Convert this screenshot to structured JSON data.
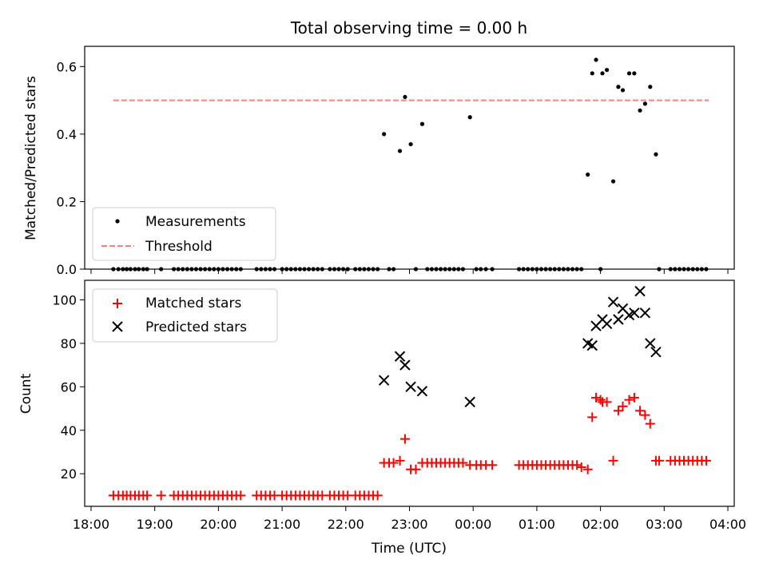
{
  "figure": {
    "title": "Total observing time = 0.00 h"
  },
  "chart_data": [
    {
      "type": "scatter",
      "panel": "top",
      "title": "Total observing time = 0.00 h",
      "ylabel": "Matched/Predicted stars",
      "xlabel": "",
      "xlim": [
        17.9,
        28.1
      ],
      "ylim": [
        0,
        0.66
      ],
      "yticks": [
        0,
        0.2,
        0.4,
        0.6
      ],
      "ytick_labels": [
        "0.0",
        "0.2",
        "0.4",
        "0.6"
      ],
      "legend": {
        "placement": "lower-left",
        "entries": [
          "Measurements",
          "Threshold"
        ]
      },
      "grid": false,
      "threshold": {
        "name": "Threshold",
        "value": 0.5,
        "x": [
          18.35,
          27.7
        ],
        "color": "#ff7f7f",
        "style": "dashed"
      },
      "series": [
        {
          "name": "Measurements",
          "color": "#000000",
          "marker": "dot",
          "points": [
            [
              18.35,
              0
            ],
            [
              18.43,
              0
            ],
            [
              18.5,
              0
            ],
            [
              18.56,
              0
            ],
            [
              18.62,
              0
            ],
            [
              18.69,
              0
            ],
            [
              18.75,
              0
            ],
            [
              18.82,
              0
            ],
            [
              18.88,
              0
            ],
            [
              19.1,
              0
            ],
            [
              19.3,
              0
            ],
            [
              19.37,
              0
            ],
            [
              19.44,
              0
            ],
            [
              19.51,
              0
            ],
            [
              19.58,
              0
            ],
            [
              19.65,
              0
            ],
            [
              19.72,
              0
            ],
            [
              19.79,
              0
            ],
            [
              19.86,
              0
            ],
            [
              19.93,
              0
            ],
            [
              20.0,
              0
            ],
            [
              20.07,
              0
            ],
            [
              20.14,
              0
            ],
            [
              20.21,
              0
            ],
            [
              20.28,
              0
            ],
            [
              20.35,
              0
            ],
            [
              20.6,
              0
            ],
            [
              20.67,
              0
            ],
            [
              20.74,
              0
            ],
            [
              20.81,
              0
            ],
            [
              20.88,
              0
            ],
            [
              21.0,
              0
            ],
            [
              21.07,
              0
            ],
            [
              21.14,
              0
            ],
            [
              21.21,
              0
            ],
            [
              21.28,
              0
            ],
            [
              21.35,
              0
            ],
            [
              21.42,
              0
            ],
            [
              21.49,
              0
            ],
            [
              21.56,
              0
            ],
            [
              21.63,
              0
            ],
            [
              21.75,
              0
            ],
            [
              21.82,
              0
            ],
            [
              21.89,
              0
            ],
            [
              21.96,
              0
            ],
            [
              22.03,
              0
            ],
            [
              22.15,
              0
            ],
            [
              22.22,
              0
            ],
            [
              22.29,
              0
            ],
            [
              22.36,
              0
            ],
            [
              22.43,
              0
            ],
            [
              22.5,
              0
            ],
            [
              22.6,
              0.4
            ],
            [
              22.68,
              0
            ],
            [
              22.75,
              0
            ],
            [
              22.85,
              0.35
            ],
            [
              22.93,
              0.51
            ],
            [
              23.02,
              0.37
            ],
            [
              23.1,
              0
            ],
            [
              23.2,
              0.43
            ],
            [
              23.28,
              0
            ],
            [
              23.35,
              0
            ],
            [
              23.42,
              0
            ],
            [
              23.49,
              0
            ],
            [
              23.56,
              0
            ],
            [
              23.63,
              0
            ],
            [
              23.7,
              0
            ],
            [
              23.77,
              0
            ],
            [
              23.84,
              0
            ],
            [
              23.95,
              0.45
            ],
            [
              24.05,
              0
            ],
            [
              24.12,
              0
            ],
            [
              24.2,
              0
            ],
            [
              24.3,
              0
            ],
            [
              24.72,
              0
            ],
            [
              24.79,
              0
            ],
            [
              24.86,
              0
            ],
            [
              24.93,
              0
            ],
            [
              25.0,
              0
            ],
            [
              25.07,
              0
            ],
            [
              25.14,
              0
            ],
            [
              25.21,
              0
            ],
            [
              25.28,
              0
            ],
            [
              25.35,
              0
            ],
            [
              25.42,
              0
            ],
            [
              25.49,
              0
            ],
            [
              25.56,
              0
            ],
            [
              25.63,
              0
            ],
            [
              25.7,
              0
            ],
            [
              25.8,
              0.28
            ],
            [
              25.87,
              0.58
            ],
            [
              25.93,
              0.62
            ],
            [
              26.0,
              0
            ],
            [
              26.03,
              0.58
            ],
            [
              26.1,
              0.59
            ],
            [
              26.2,
              0.26
            ],
            [
              26.28,
              0.54
            ],
            [
              26.35,
              0.53
            ],
            [
              26.45,
              0.58
            ],
            [
              26.53,
              0.58
            ],
            [
              26.62,
              0.47
            ],
            [
              26.7,
              0.49
            ],
            [
              26.78,
              0.54
            ],
            [
              26.87,
              0.34
            ],
            [
              26.92,
              0
            ],
            [
              27.1,
              0
            ],
            [
              27.17,
              0
            ],
            [
              27.24,
              0
            ],
            [
              27.31,
              0
            ],
            [
              27.38,
              0
            ],
            [
              27.45,
              0
            ],
            [
              27.52,
              0
            ],
            [
              27.59,
              0
            ],
            [
              27.66,
              0
            ]
          ]
        }
      ]
    },
    {
      "type": "scatter",
      "panel": "bottom",
      "ylabel": "Count",
      "xlabel": "Time (UTC)",
      "xlim": [
        17.9,
        28.1
      ],
      "ylim": [
        5,
        109
      ],
      "yticks": [
        20,
        40,
        60,
        80,
        100
      ],
      "ytick_labels": [
        "20",
        "40",
        "60",
        "80",
        "100"
      ],
      "xticks": [
        18,
        19,
        20,
        21,
        22,
        23,
        24,
        25,
        26,
        27,
        28
      ],
      "xtick_labels": [
        "18:00",
        "19:00",
        "20:00",
        "21:00",
        "22:00",
        "23:00",
        "00:00",
        "01:00",
        "02:00",
        "03:00",
        "04:00"
      ],
      "legend": {
        "placement": "top-left",
        "entries": [
          "Matched stars",
          "Predicted stars"
        ]
      },
      "grid": false,
      "series": [
        {
          "name": "Matched stars",
          "color": "#ff0000",
          "marker": "plus",
          "points": [
            [
              18.35,
              10
            ],
            [
              18.43,
              10
            ],
            [
              18.5,
              10
            ],
            [
              18.56,
              10
            ],
            [
              18.62,
              10
            ],
            [
              18.69,
              10
            ],
            [
              18.75,
              10
            ],
            [
              18.82,
              10
            ],
            [
              18.88,
              10
            ],
            [
              19.1,
              10
            ],
            [
              19.3,
              10
            ],
            [
              19.37,
              10
            ],
            [
              19.44,
              10
            ],
            [
              19.51,
              10
            ],
            [
              19.58,
              10
            ],
            [
              19.65,
              10
            ],
            [
              19.72,
              10
            ],
            [
              19.79,
              10
            ],
            [
              19.86,
              10
            ],
            [
              19.93,
              10
            ],
            [
              20.0,
              10
            ],
            [
              20.07,
              10
            ],
            [
              20.14,
              10
            ],
            [
              20.21,
              10
            ],
            [
              20.28,
              10
            ],
            [
              20.35,
              10
            ],
            [
              20.6,
              10
            ],
            [
              20.67,
              10
            ],
            [
              20.74,
              10
            ],
            [
              20.81,
              10
            ],
            [
              20.88,
              10
            ],
            [
              21.0,
              10
            ],
            [
              21.07,
              10
            ],
            [
              21.14,
              10
            ],
            [
              21.21,
              10
            ],
            [
              21.28,
              10
            ],
            [
              21.35,
              10
            ],
            [
              21.42,
              10
            ],
            [
              21.49,
              10
            ],
            [
              21.56,
              10
            ],
            [
              21.63,
              10
            ],
            [
              21.75,
              10
            ],
            [
              21.82,
              10
            ],
            [
              21.89,
              10
            ],
            [
              21.96,
              10
            ],
            [
              22.03,
              10
            ],
            [
              22.15,
              10
            ],
            [
              22.22,
              10
            ],
            [
              22.29,
              10
            ],
            [
              22.36,
              10
            ],
            [
              22.43,
              10
            ],
            [
              22.5,
              10
            ],
            [
              22.6,
              25
            ],
            [
              22.68,
              25
            ],
            [
              22.75,
              25
            ],
            [
              22.85,
              26
            ],
            [
              22.93,
              36
            ],
            [
              23.02,
              22
            ],
            [
              23.1,
              22
            ],
            [
              23.2,
              25
            ],
            [
              23.28,
              25
            ],
            [
              23.35,
              25
            ],
            [
              23.42,
              25
            ],
            [
              23.49,
              25
            ],
            [
              23.56,
              25
            ],
            [
              23.63,
              25
            ],
            [
              23.7,
              25
            ],
            [
              23.77,
              25
            ],
            [
              23.84,
              25
            ],
            [
              23.95,
              24
            ],
            [
              24.05,
              24
            ],
            [
              24.12,
              24
            ],
            [
              24.2,
              24
            ],
            [
              24.3,
              24
            ],
            [
              24.72,
              24
            ],
            [
              24.79,
              24
            ],
            [
              24.86,
              24
            ],
            [
              24.93,
              24
            ],
            [
              25.0,
              24
            ],
            [
              25.07,
              24
            ],
            [
              25.14,
              24
            ],
            [
              25.21,
              24
            ],
            [
              25.28,
              24
            ],
            [
              25.35,
              24
            ],
            [
              25.42,
              24
            ],
            [
              25.49,
              24
            ],
            [
              25.56,
              24
            ],
            [
              25.63,
              24
            ],
            [
              25.7,
              23
            ],
            [
              25.8,
              22
            ],
            [
              25.87,
              46
            ],
            [
              25.93,
              55
            ],
            [
              26.0,
              54
            ],
            [
              26.03,
              53
            ],
            [
              26.1,
              53
            ],
            [
              26.2,
              26
            ],
            [
              26.28,
              49
            ],
            [
              26.35,
              51
            ],
            [
              26.45,
              54
            ],
            [
              26.53,
              55
            ],
            [
              26.62,
              49
            ],
            [
              26.7,
              47
            ],
            [
              26.78,
              43
            ],
            [
              26.87,
              26
            ],
            [
              26.92,
              26
            ],
            [
              27.1,
              26
            ],
            [
              27.17,
              26
            ],
            [
              27.24,
              26
            ],
            [
              27.31,
              26
            ],
            [
              27.38,
              26
            ],
            [
              27.45,
              26
            ],
            [
              27.52,
              26
            ],
            [
              27.59,
              26
            ],
            [
              27.66,
              26
            ]
          ]
        },
        {
          "name": "Predicted stars",
          "color": "#000000",
          "marker": "x",
          "points": [
            [
              22.6,
              63
            ],
            [
              22.85,
              74
            ],
            [
              22.93,
              70
            ],
            [
              23.02,
              60
            ],
            [
              23.2,
              58
            ],
            [
              23.95,
              53
            ],
            [
              25.8,
              80
            ],
            [
              25.87,
              79
            ],
            [
              25.93,
              88
            ],
            [
              26.03,
              91
            ],
            [
              26.1,
              89
            ],
            [
              26.2,
              99
            ],
            [
              26.28,
              91
            ],
            [
              26.35,
              96
            ],
            [
              26.45,
              93
            ],
            [
              26.53,
              94
            ],
            [
              26.62,
              104
            ],
            [
              26.7,
              94
            ],
            [
              26.78,
              80
            ],
            [
              26.87,
              76
            ]
          ]
        }
      ]
    }
  ]
}
